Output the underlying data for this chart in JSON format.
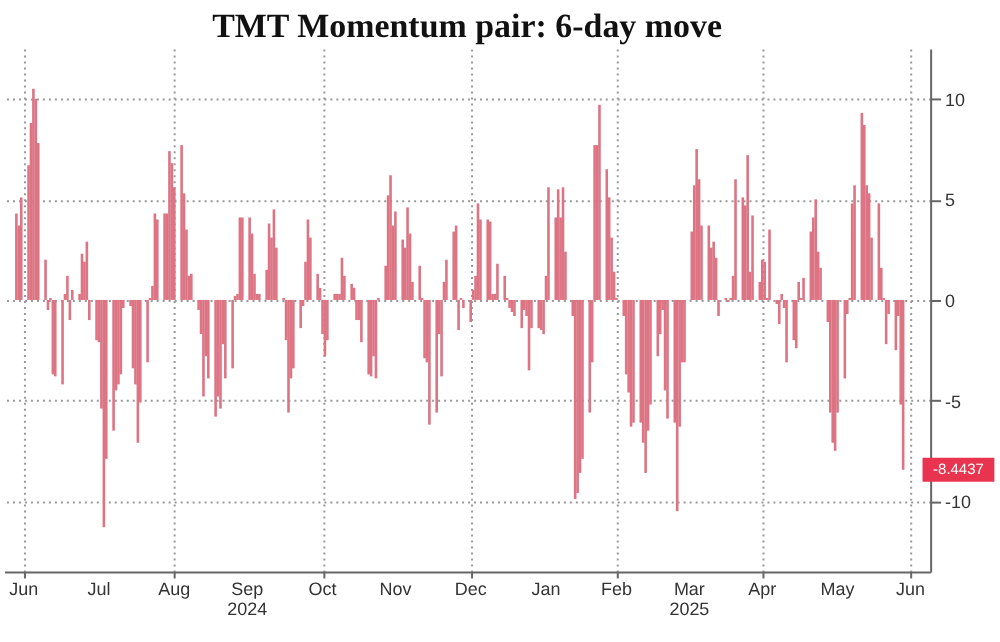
{
  "chart_data": {
    "type": "bar",
    "title": "TMT Momentum pair: 6-day move",
    "color": "#dc7484",
    "grid": true,
    "xlim": [
      "2024-06-11",
      "2025-06-19"
    ],
    "ylim": [
      -13.5,
      12.5
    ],
    "yticks": [
      -10,
      -5,
      0,
      5,
      10
    ],
    "xticks": [
      {
        "value": "2024-06-15",
        "label": "Jun"
      },
      {
        "value": "2024-07-16",
        "label": "Jul"
      },
      {
        "value": "2024-08-16",
        "label": "Aug"
      },
      {
        "value": "2024-09-15",
        "label": "Sep\n2024"
      },
      {
        "value": "2024-10-16",
        "label": "Oct"
      },
      {
        "value": "2024-11-15",
        "label": "Nov"
      },
      {
        "value": "2024-12-16",
        "label": "Dec"
      },
      {
        "value": "2025-01-16",
        "label": "Jan"
      },
      {
        "value": "2025-02-14",
        "label": "Feb"
      },
      {
        "value": "2025-03-16",
        "label": "Mar\n2025"
      },
      {
        "value": "2025-04-15",
        "label": "Apr"
      },
      {
        "value": "2025-05-16",
        "label": "May"
      },
      {
        "value": "2025-06-15",
        "label": "Jun"
      }
    ],
    "annotations": [
      {
        "text": "-8.4437",
        "x": "2025-06-12",
        "y": -8.4437
      }
    ],
    "x": [
      "2024-06-12",
      "2024-06-13",
      "2024-06-14",
      "2024-06-17",
      "2024-06-18",
      "2024-06-19",
      "2024-06-20",
      "2024-06-21",
      "2024-06-24",
      "2024-06-25",
      "2024-06-26",
      "2024-06-27",
      "2024-06-28",
      "2024-07-01",
      "2024-07-02",
      "2024-07-03",
      "2024-07-04",
      "2024-07-05",
      "2024-07-08",
      "2024-07-09",
      "2024-07-10",
      "2024-07-11",
      "2024-07-12",
      "2024-07-15",
      "2024-07-16",
      "2024-07-17",
      "2024-07-18",
      "2024-07-19",
      "2024-07-22",
      "2024-07-23",
      "2024-07-24",
      "2024-07-25",
      "2024-07-26",
      "2024-07-29",
      "2024-07-30",
      "2024-07-31",
      "2024-08-01",
      "2024-08-02",
      "2024-08-05",
      "2024-08-06",
      "2024-08-07",
      "2024-08-08",
      "2024-08-09",
      "2024-08-12",
      "2024-08-13",
      "2024-08-14",
      "2024-08-15",
      "2024-08-16",
      "2024-08-19",
      "2024-08-20",
      "2024-08-21",
      "2024-08-22",
      "2024-08-23",
      "2024-08-26",
      "2024-08-27",
      "2024-08-28",
      "2024-08-29",
      "2024-08-30",
      "2024-09-02",
      "2024-09-03",
      "2024-09-04",
      "2024-09-05",
      "2024-09-06",
      "2024-09-09",
      "2024-09-10",
      "2024-09-11",
      "2024-09-12",
      "2024-09-13",
      "2024-09-16",
      "2024-09-17",
      "2024-09-18",
      "2024-09-19",
      "2024-09-20",
      "2024-09-23",
      "2024-09-24",
      "2024-09-25",
      "2024-09-26",
      "2024-09-27",
      "2024-09-30",
      "2024-10-01",
      "2024-10-02",
      "2024-10-03",
      "2024-10-04",
      "2024-10-07",
      "2024-10-08",
      "2024-10-09",
      "2024-10-10",
      "2024-10-11",
      "2024-10-14",
      "2024-10-15",
      "2024-10-16",
      "2024-10-17",
      "2024-10-18",
      "2024-10-21",
      "2024-10-22",
      "2024-10-23",
      "2024-10-24",
      "2024-10-25",
      "2024-10-28",
      "2024-10-29",
      "2024-10-30",
      "2024-10-31",
      "2024-11-01",
      "2024-11-04",
      "2024-11-05",
      "2024-11-06",
      "2024-11-07",
      "2024-11-08",
      "2024-11-11",
      "2024-11-12",
      "2024-11-13",
      "2024-11-14",
      "2024-11-15",
      "2024-11-18",
      "2024-11-19",
      "2024-11-20",
      "2024-11-21",
      "2024-11-22",
      "2024-11-25",
      "2024-11-26",
      "2024-11-27",
      "2024-11-28",
      "2024-11-29",
      "2024-12-02",
      "2024-12-03",
      "2024-12-04",
      "2024-12-05",
      "2024-12-06",
      "2024-12-09",
      "2024-12-10",
      "2024-12-11",
      "2024-12-12",
      "2024-12-13",
      "2024-12-16",
      "2024-12-17",
      "2024-12-18",
      "2024-12-19",
      "2024-12-20",
      "2024-12-23",
      "2024-12-24",
      "2024-12-25",
      "2024-12-26",
      "2024-12-27",
      "2024-12-30",
      "2024-12-31",
      "2025-01-01",
      "2025-01-02",
      "2025-01-03",
      "2025-01-06",
      "2025-01-07",
      "2025-01-08",
      "2025-01-09",
      "2025-01-10",
      "2025-01-13",
      "2025-01-14",
      "2025-01-15",
      "2025-01-16",
      "2025-01-17",
      "2025-01-20",
      "2025-01-21",
      "2025-01-22",
      "2025-01-23",
      "2025-01-24",
      "2025-01-27",
      "2025-01-28",
      "2025-01-29",
      "2025-01-30",
      "2025-01-31",
      "2025-02-03",
      "2025-02-04",
      "2025-02-05",
      "2025-02-06",
      "2025-02-07",
      "2025-02-10",
      "2025-02-11",
      "2025-02-12",
      "2025-02-13",
      "2025-02-14",
      "2025-02-17",
      "2025-02-18",
      "2025-02-19",
      "2025-02-20",
      "2025-02-21",
      "2025-02-24",
      "2025-02-25",
      "2025-02-26",
      "2025-02-27",
      "2025-02-28",
      "2025-03-03",
      "2025-03-04",
      "2025-03-05",
      "2025-03-06",
      "2025-03-07",
      "2025-03-10",
      "2025-03-11",
      "2025-03-12",
      "2025-03-13",
      "2025-03-14",
      "2025-03-17",
      "2025-03-18",
      "2025-03-19",
      "2025-03-20",
      "2025-03-21",
      "2025-03-24",
      "2025-03-25",
      "2025-03-26",
      "2025-03-27",
      "2025-03-28",
      "2025-03-31",
      "2025-04-01",
      "2025-04-02",
      "2025-04-03",
      "2025-04-04",
      "2025-04-07",
      "2025-04-08",
      "2025-04-09",
      "2025-04-10",
      "2025-04-11",
      "2025-04-14",
      "2025-04-15",
      "2025-04-16",
      "2025-04-17",
      "2025-04-18",
      "2025-04-21",
      "2025-04-22",
      "2025-04-23",
      "2025-04-24",
      "2025-04-25",
      "2025-04-28",
      "2025-04-29",
      "2025-04-30",
      "2025-05-01",
      "2025-05-02",
      "2025-05-05",
      "2025-05-06",
      "2025-05-07",
      "2025-05-08",
      "2025-05-09",
      "2025-05-12",
      "2025-05-13",
      "2025-05-14",
      "2025-05-15",
      "2025-05-16",
      "2025-05-19",
      "2025-05-20",
      "2025-05-21",
      "2025-05-22",
      "2025-05-23",
      "2025-05-26",
      "2025-05-27",
      "2025-05-28",
      "2025-05-29",
      "2025-05-30",
      "2025-06-02",
      "2025-06-03",
      "2025-06-04",
      "2025-06-05",
      "2025-06-06",
      "2025-06-09",
      "2025-06-10",
      "2025-06-11",
      "2025-06-12"
    ],
    "values": [
      4.3,
      3.7,
      5.1,
      6.7,
      8.8,
      10.5,
      10,
      7.8,
      2,
      -0.5,
      0.1,
      -3.7,
      -3.8,
      -4.2,
      0.3,
      1.2,
      -1,
      0.5,
      0.3,
      2.3,
      1.9,
      2.9,
      -1,
      -2,
      -2.1,
      -5.4,
      -11.3,
      -7.9,
      -6.5,
      -4.5,
      -4.2,
      -3.7,
      -0.4,
      -0.3,
      -3.4,
      -4.2,
      -7.1,
      -5.1,
      -3.1,
      0.1,
      0.7,
      4.3,
      4,
      4.3,
      4.3,
      7.4,
      6.8,
      5.6,
      7.7,
      5.3,
      3.5,
      1.2,
      1.3,
      -0.5,
      -1.7,
      -4.8,
      -2.8,
      -3.9,
      -5.8,
      -4.8,
      -5.4,
      -2.2,
      -3.9,
      -3.4,
      0.2,
      0.3,
      4.1,
      4.1,
      4.1,
      3.3,
      1.3,
      0.3,
      0.3,
      1.5,
      3.8,
      3.1,
      4.5,
      2.6,
      0.1,
      -2,
      -5.6,
      -3.9,
      -3.4,
      -1.4,
      -0.3,
      1.9,
      4,
      3.1,
      1.3,
      0.6,
      -1.7,
      -2.8,
      -2,
      0.3,
      0.3,
      0.3,
      2.1,
      1.2,
      0.8,
      0.6,
      -1,
      -1,
      -2.1,
      -3.7,
      -3.8,
      -2.8,
      -3.9,
      0.1,
      1.7,
      5.2,
      6.2,
      3.7,
      4.4,
      3,
      2.6,
      4.6,
      3.3,
      0.9,
      1.7,
      0.1,
      -2.9,
      -3.1,
      -6.2,
      -5.6,
      -1.7,
      -3.8,
      0.9,
      2,
      3.4,
      3.7,
      -1.5,
      0.1,
      -0.4,
      -1.1,
      0.5,
      1.2,
      4.8,
      4,
      4,
      3.9,
      0.3,
      0.3,
      1.8,
      1.2,
      0.1,
      -0.4,
      -0.6,
      -0.8,
      -1.4,
      -0.5,
      -0.8,
      -3.5,
      -1.4,
      -1.4,
      -1.5,
      -1.7,
      1.2,
      5.6,
      4.1,
      5.5,
      4.1,
      5.6,
      2.4,
      -0.8,
      -9.9,
      -9.6,
      -8.6,
      -7.9,
      -5.6,
      -3.1,
      7.7,
      7.7,
      9.7,
      6.5,
      5.1,
      3.1,
      1.4,
      0.1,
      -0.8,
      -3.7,
      -4.6,
      -6.3,
      -6.1,
      -6.1,
      -7.1,
      -8.6,
      -6.5,
      -5.2,
      -2.8,
      -1.7,
      -0.5,
      -4.5,
      -5.9,
      -6.1,
      -10.5,
      -6.3,
      -3.1,
      -3.1,
      3.4,
      5.7,
      7.5,
      6,
      3.7,
      3.7,
      2.6,
      2.9,
      2.1,
      -0.8,
      0.1,
      -0.1,
      0.1,
      1.2,
      6,
      5.1,
      4.7,
      7.2,
      1.4,
      4.2,
      0.9,
      2,
      1.9,
      0.1,
      3.5,
      -0.2,
      -1.2,
      0.3,
      -0.4,
      -3.1,
      -2,
      -2.4,
      0.9,
      0.1,
      1.1,
      3.4,
      4.1,
      5,
      2.4,
      1.6,
      -1.1,
      -5.6,
      -7.1,
      -7.5,
      -5.6,
      -3.9,
      -0.7,
      0.1,
      4.8,
      5.7,
      9.3,
      8.7,
      5.7,
      5.3,
      3.1,
      4.8,
      1.6,
      0.1,
      -2.2,
      -0.7,
      -2.5,
      -0.8,
      -5.2,
      -8.4437
    ]
  }
}
